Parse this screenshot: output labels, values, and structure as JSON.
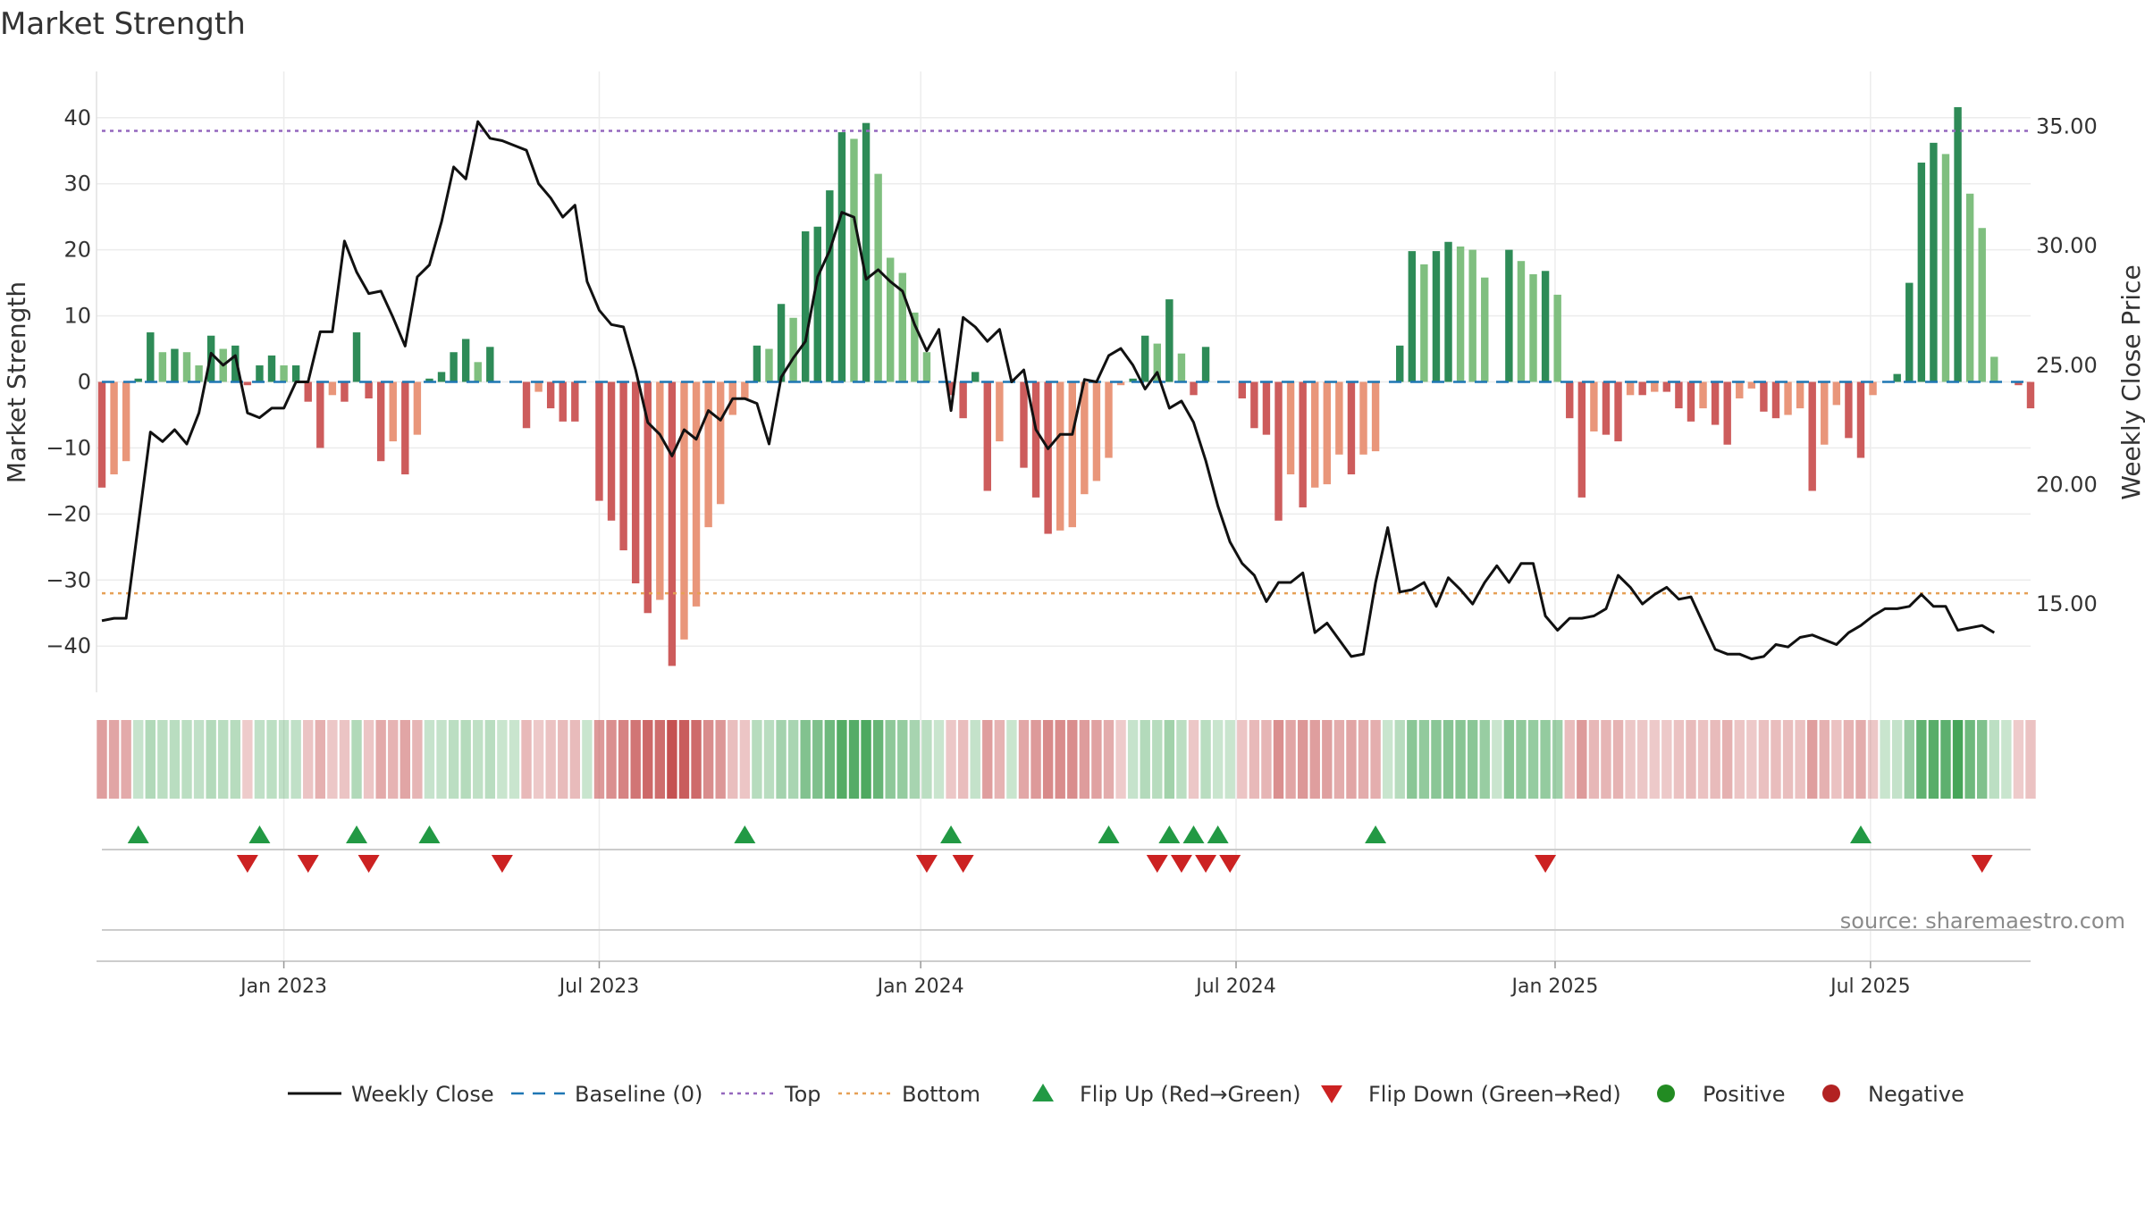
{
  "chart_data": {
    "type": "bar",
    "title": "Market Strength",
    "ylabel": "Market Strength",
    "y2label": "Weekly Close Price",
    "ylim": [
      -47,
      47
    ],
    "y2lim": [
      11.3,
      37.3
    ],
    "yticks": [
      40,
      30,
      20,
      10,
      0,
      -10,
      -20,
      -30,
      -40
    ],
    "ytick_labels": [
      "40",
      "30",
      "20",
      "10",
      "0",
      "−10",
      "−20",
      "−30",
      "−40"
    ],
    "y2ticks": [
      35,
      30,
      25,
      20,
      15
    ],
    "y2tick_labels": [
      "35.00",
      "30.00",
      "25.00",
      "20.00",
      "15.00"
    ],
    "top_line": 38,
    "bottom_line": -32,
    "x_tick_labels": [
      "Jan 2023",
      "Jul 2023",
      "Jan 2024",
      "Jul 2024",
      "Jan 2025",
      "Jul 2025"
    ],
    "x_tick_weeks": [
      15,
      41,
      67.5,
      93.5,
      119.8,
      145.8
    ],
    "strength": [
      -16,
      -14,
      -12,
      0.5,
      7.5,
      4.5,
      5,
      4.5,
      2.5,
      7,
      5,
      5.5,
      -0.5,
      2.5,
      4,
      2.5,
      2.5,
      -3,
      -10,
      -2,
      -3,
      7.5,
      -2.5,
      -12,
      -9,
      -14,
      -8,
      0.5,
      1.5,
      4.5,
      6.5,
      3,
      5.3,
      0,
      0,
      -7,
      -1.5,
      -4,
      -6,
      -6,
      0,
      -18,
      -21,
      -25.5,
      -30.5,
      -35,
      -33,
      -43,
      -39,
      -34,
      -22,
      -18.5,
      -5,
      -2.5,
      5.5,
      5,
      11.8,
      9.7,
      22.8,
      23.5,
      29,
      37.8,
      36.8,
      39.2,
      31.5,
      18.8,
      16.5,
      10.5,
      4.5,
      0,
      -2,
      -5.5,
      1.5,
      -16.5,
      -9,
      0,
      -13,
      -17.5,
      -23,
      -22.5,
      -22,
      -17,
      -15,
      -11.5,
      -0.5,
      0.5,
      7,
      5.8,
      12.5,
      4.3,
      -2,
      5.3,
      0,
      0,
      -2.5,
      -7,
      -8,
      -21,
      -14,
      -19,
      -16,
      -15.5,
      -11,
      -14,
      -11,
      -10.5,
      0,
      5.5,
      19.8,
      17.8,
      19.8,
      21.2,
      20.5,
      20,
      15.8,
      0,
      20,
      18.3,
      16.3,
      16.8,
      13.2,
      -5.5,
      -17.5,
      -7.5,
      -8,
      -9,
      -2,
      -2,
      -1.5,
      -1.5,
      -4,
      -6,
      -4,
      -6.5,
      -9.5,
      -2.5,
      -1,
      -4.5,
      -5.5,
      -5,
      -4,
      -16.5,
      -9.5,
      -3.5,
      -8.5,
      -11.5,
      -2,
      0,
      1.2,
      15,
      33.2,
      36.2,
      34.5,
      41.6,
      28.5,
      23.3,
      3.8,
      0,
      -0.5,
      -4
    ],
    "close": [
      14.3,
      14.4,
      14.4,
      18.3,
      22.2,
      21.8,
      22.3,
      21.7,
      23,
      25.5,
      25,
      25.4,
      23,
      22.8,
      23.2,
      23.2,
      24.3,
      24.3,
      26.4,
      26.4,
      30.2,
      28.9,
      28,
      28.1,
      27,
      25.8,
      28.7,
      29.2,
      31,
      33.3,
      32.8,
      35.2,
      34.5,
      34.4,
      34.2,
      34,
      32.6,
      32,
      31.2,
      31.7,
      28.5,
      27.3,
      26.7,
      26.6,
      24.8,
      22.6,
      22.1,
      21.2,
      22.3,
      21.9,
      23.1,
      22.7,
      23.6,
      23.6,
      23.4,
      21.7,
      24.5,
      25.3,
      26,
      28.7,
      29.8,
      31.4,
      31.2,
      28.6,
      29,
      28.5,
      28.1,
      26.7,
      25.6,
      26.5,
      23.1,
      27,
      26.6,
      26,
      26.5,
      24.3,
      24.8,
      22.3,
      21.5,
      22.1,
      22.1,
      24.4,
      24.3,
      25.4,
      25.7,
      25,
      24,
      24.7,
      23.2,
      23.5,
      22.6,
      21,
      19.1,
      17.6,
      16.7,
      16.2,
      15.1,
      15.9,
      15.9,
      16.3,
      13.8,
      14.2,
      13.5,
      12.8,
      12.9,
      15.9,
      18.2,
      15.5,
      15.6,
      15.9,
      14.9,
      16.1,
      15.6,
      15,
      15.9,
      16.6,
      15.9,
      16.7,
      16.7,
      14.5,
      13.9,
      14.4,
      14.4,
      14.5,
      14.8,
      16.2,
      15.7,
      15,
      15.4,
      15.7,
      15.2,
      15.3,
      14.2,
      13.1,
      12.9,
      12.9,
      12.7,
      12.8,
      13.3,
      13.2,
      13.6,
      13.7,
      13.5,
      13.3,
      13.8,
      14.1,
      14.5,
      14.8,
      14.8,
      14.9,
      15.4,
      14.9,
      14.9,
      13.9,
      14,
      14.1,
      13.8
    ],
    "flip_up_weeks": [
      3,
      13,
      21,
      27,
      53,
      70,
      83,
      88,
      90,
      92,
      105,
      145
    ],
    "flip_down_weeks": [
      12,
      17,
      22,
      33,
      68,
      71,
      87,
      89,
      91,
      93,
      119,
      155
    ],
    "legend": [
      "Weekly Close",
      "Baseline (0)",
      "Top",
      "Bottom",
      "Flip Up (Red→Green)",
      "Flip Down (Green→Red)",
      "Positive",
      "Negative"
    ],
    "source": "source: sharemaestro.com",
    "colors": {
      "pos_dark": "#2e8b57",
      "pos_light": "#7fbf7f",
      "neg_dark": "#cd5c5c",
      "neg_light": "#e9967a",
      "close_line": "#111111",
      "baseline": "#1f77b4",
      "top": "#9467bd",
      "bottom": "#e6a056",
      "flip_up": "#229944",
      "flip_down": "#cc2222",
      "positive_dot": "#228b22",
      "negative_dot": "#b22222"
    }
  }
}
